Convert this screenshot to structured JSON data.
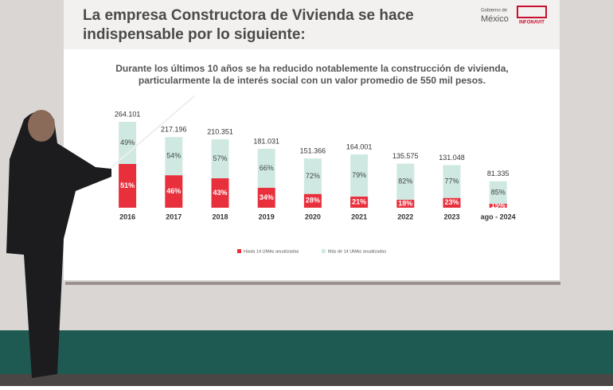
{
  "header": {
    "logos": [
      "Gobierno de",
      "México",
      "INFONAVIT"
    ]
  },
  "chart_data": {
    "type": "bar",
    "title": [
      "La empresa Constructora de Vivienda se hace",
      "indispensable por lo siguiente:"
    ],
    "subtitle": [
      "Durante los últimos 10 años se ha reducido notablemente la construcción de vivienda,",
      "particularmente la de interés social con un valor promedio de 550 mil pesos."
    ],
    "categories": [
      "2016",
      "2017",
      "2018",
      "2019",
      "2020",
      "2021",
      "2022",
      "2023",
      "ago - 2024"
    ],
    "totals": {
      "values": [
        264101,
        217196,
        210351,
        181031,
        151366,
        164001,
        135575,
        131048,
        81335
      ],
      "value_labels": [
        "264.101",
        "217.196",
        "210.351",
        "181.031",
        "151.366",
        "164.001",
        "135.575",
        "131.048",
        "81.335"
      ]
    },
    "series": [
      {
        "name": "Hasta 14 UMAs anualizadas",
        "color": "#e8303d",
        "values": [
          51,
          46,
          43,
          34,
          28,
          21,
          18,
          23,
          15
        ],
        "value_labels": [
          "51%",
          "46%",
          "43%",
          "34%",
          "28%",
          "21%",
          "18%",
          "23%",
          "15%"
        ]
      },
      {
        "name": "Más de 14 UMAs anualizadas",
        "color": "#cfe9e2",
        "values": [
          49,
          54,
          57,
          66,
          72,
          79,
          82,
          77,
          85
        ],
        "value_labels": [
          "49%",
          "54%",
          "57%",
          "66%",
          "72%",
          "79%",
          "82%",
          "77%",
          "85%"
        ]
      }
    ]
  }
}
